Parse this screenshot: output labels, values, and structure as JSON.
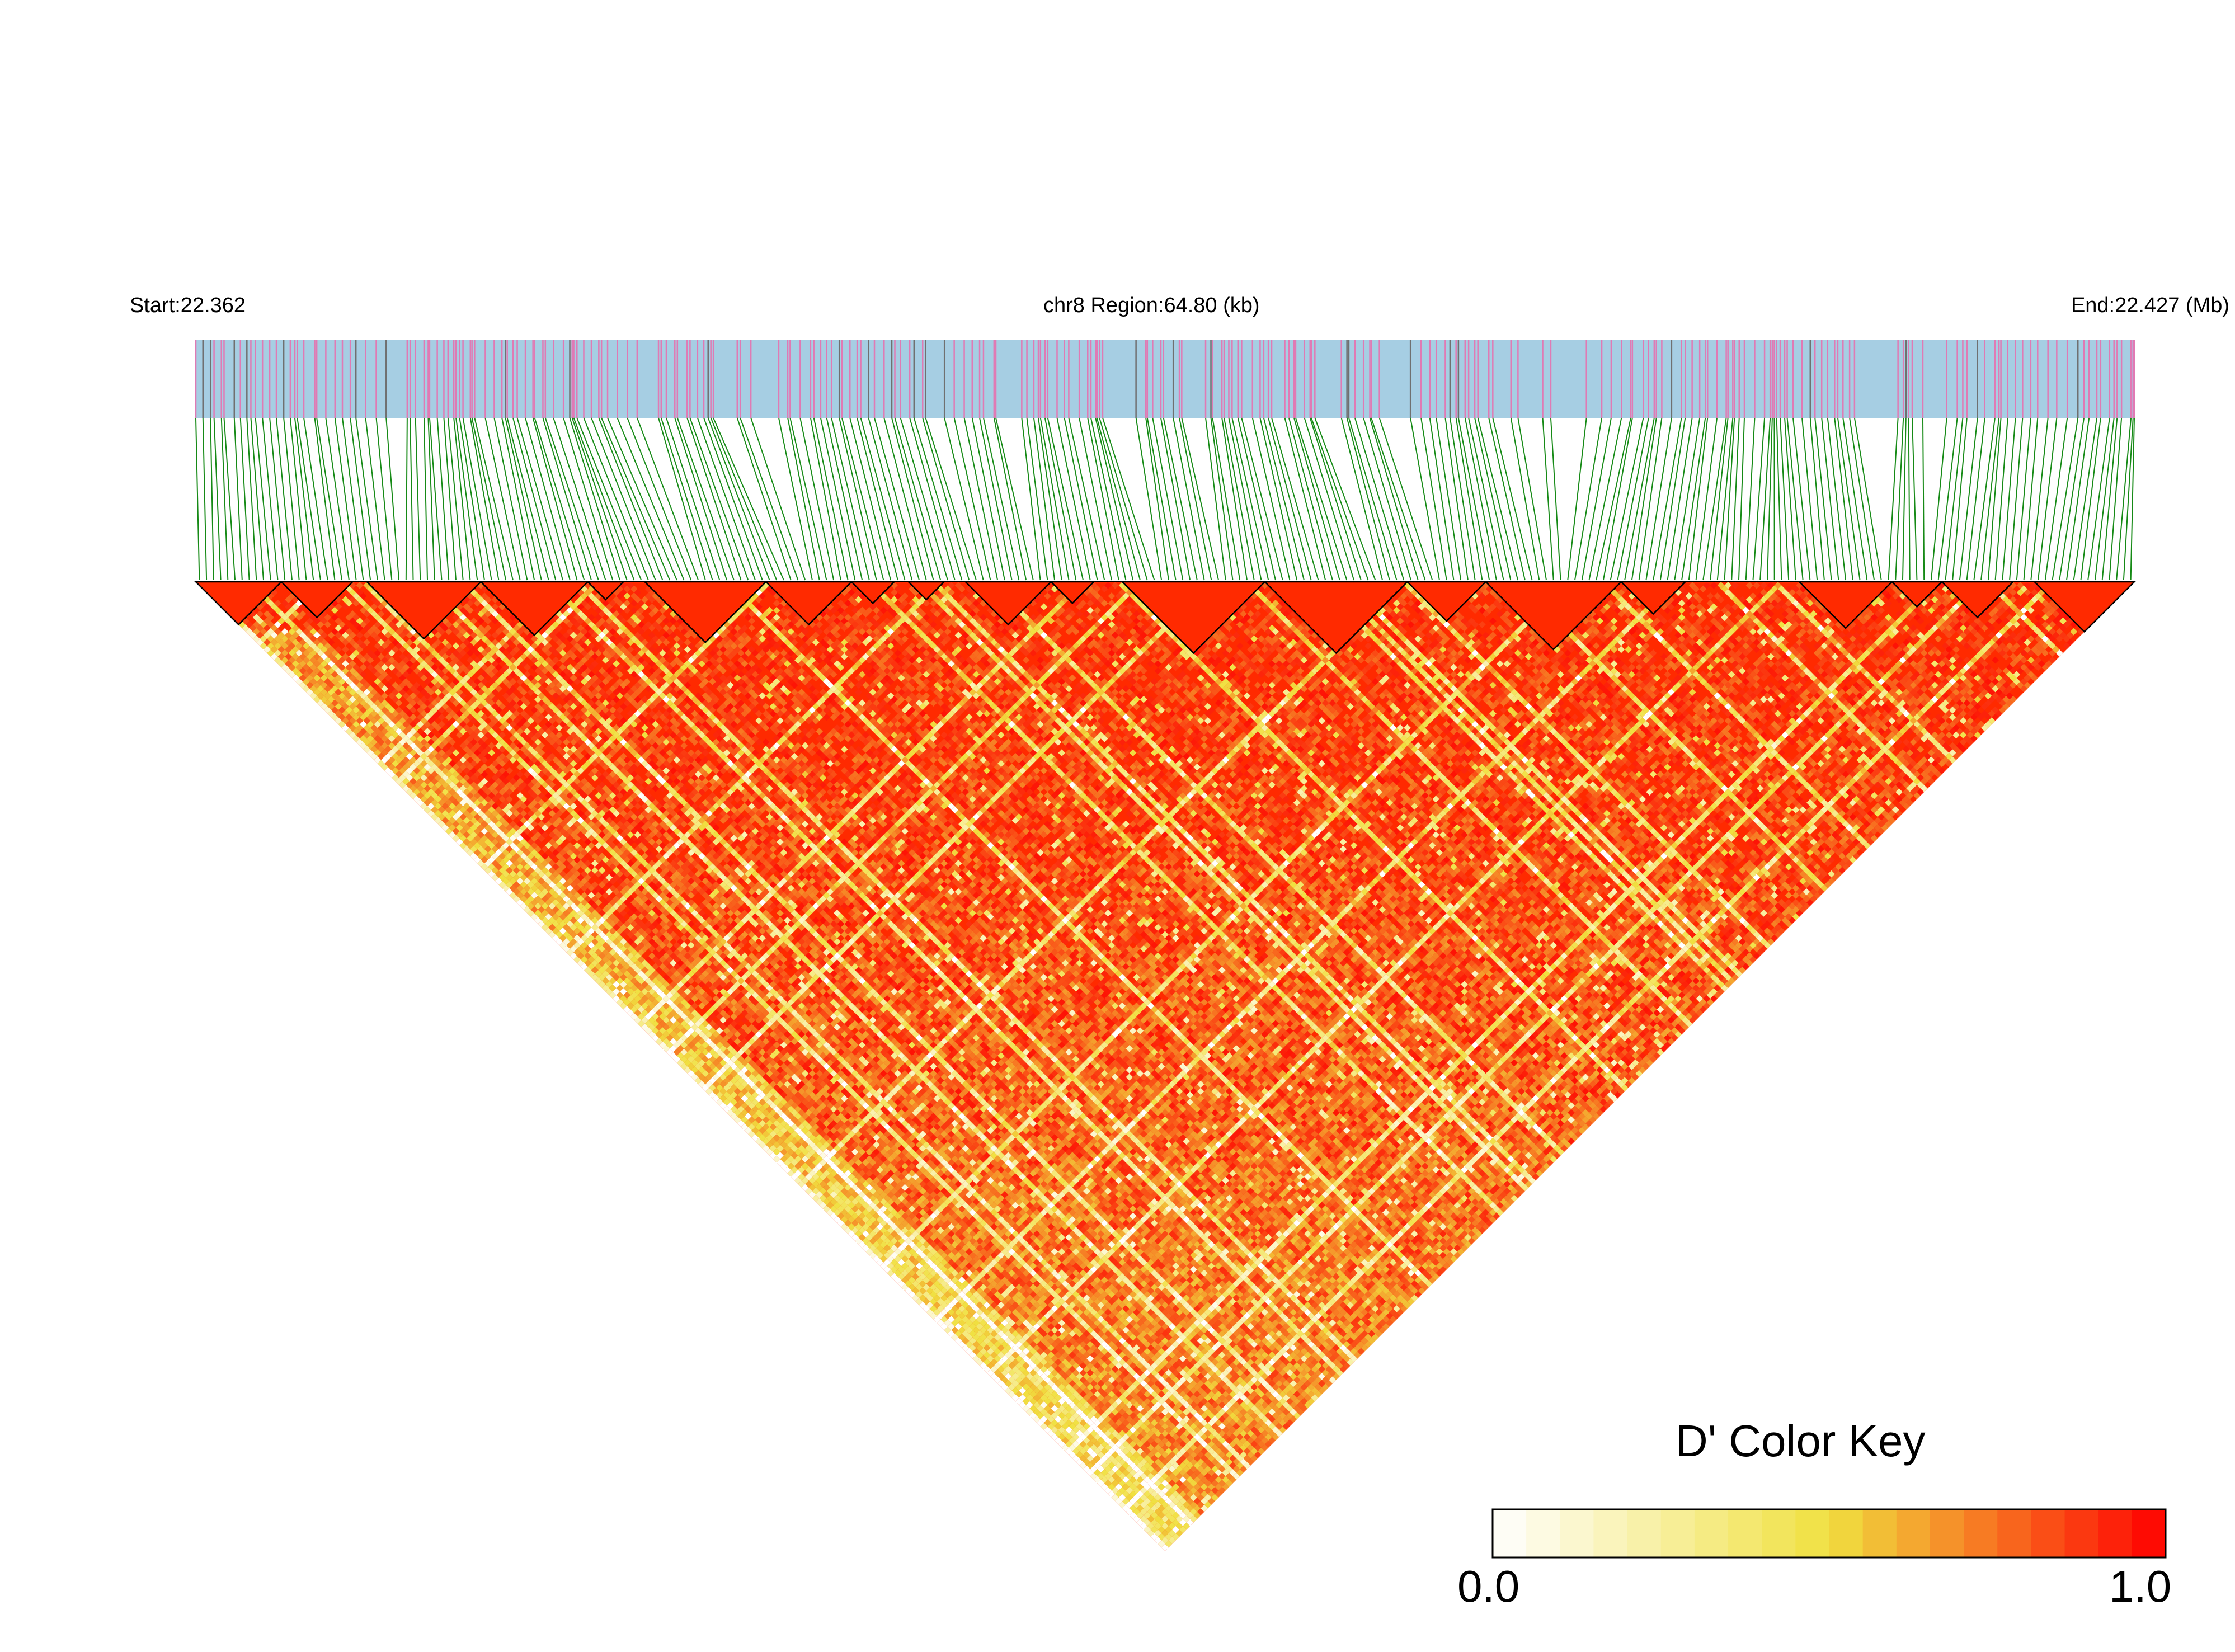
{
  "header": {
    "start_label": "Start:22.362",
    "region_label": "chr8 Region:64.80 (kb)",
    "end_label": "End:22.427 (Mb)"
  },
  "colors": {
    "track_fill": "#a6cee3",
    "track_tick_pink": "#e07ab4",
    "track_tick_gray": "#707070",
    "connector": "#168a16",
    "ld_high": "#ff0000",
    "ld_mid": "#f0e040",
    "ld_low": "#ffffff",
    "block_outline": "#000000"
  },
  "chart_data": {
    "type": "heatmap",
    "title": "",
    "chromosome": "chr8",
    "region_start_mb": 22.362,
    "region_end_mb": 22.427,
    "region_kb": 64.8,
    "n_snps": 272,
    "ld_fill_default": "#ff2a00",
    "haplotype_block_ranges": [
      [
        0,
        12
      ],
      [
        12,
        22
      ],
      [
        24,
        40
      ],
      [
        40,
        55
      ],
      [
        55,
        60
      ],
      [
        63,
        80
      ],
      [
        80,
        92
      ],
      [
        92,
        98
      ],
      [
        100,
        105
      ],
      [
        108,
        120
      ],
      [
        120,
        126
      ],
      [
        130,
        150
      ],
      [
        150,
        170
      ],
      [
        170,
        181
      ],
      [
        181,
        200
      ],
      [
        200,
        209
      ],
      [
        225,
        238
      ],
      [
        238,
        245
      ],
      [
        245,
        255
      ],
      [
        258,
        272
      ]
    ],
    "color_key": {
      "title": "D' Color Key",
      "min": 0.0,
      "max": 1.0,
      "min_label": "0.0",
      "max_label": "1.0",
      "bins": 20,
      "stops": [
        "#ffffff",
        "#f0e040",
        "#ff0000"
      ]
    }
  }
}
